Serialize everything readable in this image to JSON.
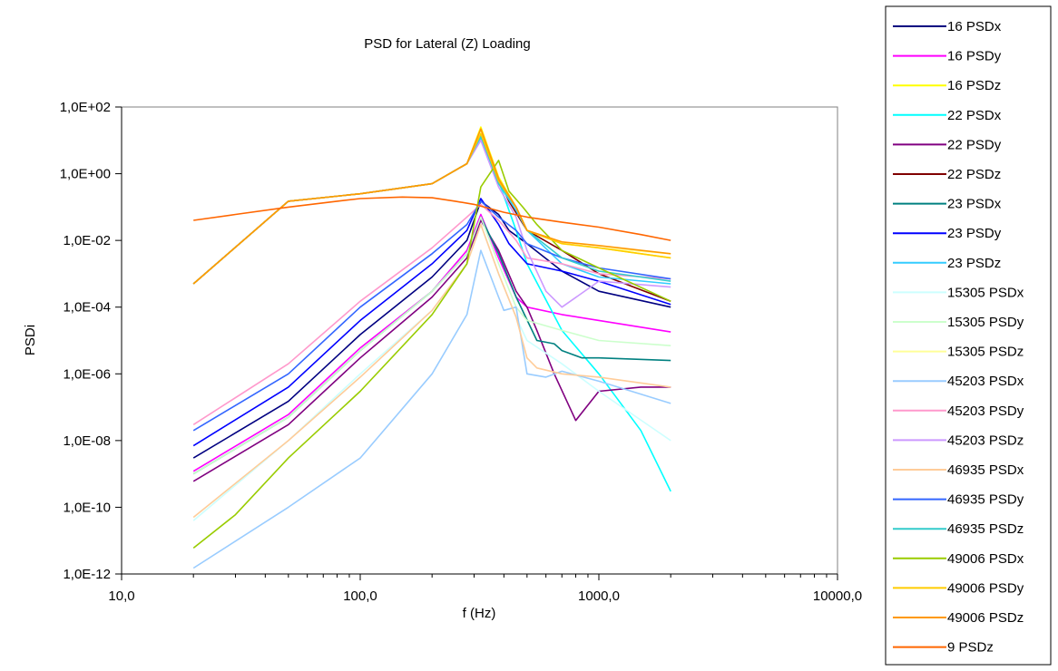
{
  "chart_data": {
    "type": "line",
    "title": "PSD for Lateral (Z) Loading",
    "xlabel": "f (Hz)",
    "ylabel": "PSDi",
    "x_scale": "log",
    "y_scale": "log",
    "xlim": [
      10,
      10000
    ],
    "ylim": [
      1e-12,
      100
    ],
    "x_ticks": [
      {
        "value": 10,
        "label": "10,0"
      },
      {
        "value": 100,
        "label": "100,0"
      },
      {
        "value": 1000,
        "label": "1000,0"
      },
      {
        "value": 10000,
        "label": "10000,0"
      }
    ],
    "y_ticks": [
      {
        "value": 100,
        "label": "1,0E+02"
      },
      {
        "value": 1,
        "label": "1,0E+00"
      },
      {
        "value": 0.01,
        "label": "1,0E-02"
      },
      {
        "value": 0.0001,
        "label": "1,0E-04"
      },
      {
        "value": 1e-06,
        "label": "1,0E-06"
      },
      {
        "value": 1e-08,
        "label": "1,0E-08"
      },
      {
        "value": 1e-10,
        "label": "1,0E-10"
      },
      {
        "value": 1e-12,
        "label": "1,0E-12"
      }
    ],
    "grid": false,
    "legend_position": "right",
    "series": [
      {
        "name": "16 PSDx",
        "color": "#000080",
        "x": [
          20,
          50,
          100,
          200,
          280,
          320,
          380,
          420,
          500,
          700,
          1000,
          2000
        ],
        "y": [
          3e-09,
          1.5e-07,
          1.5e-05,
          0.0008,
          0.01,
          0.15,
          0.06,
          0.02,
          0.008,
          0.0012,
          0.0003,
          0.0001
        ]
      },
      {
        "name": "16 PSDy",
        "color": "#ff00ff",
        "x": [
          20,
          50,
          100,
          200,
          280,
          320,
          380,
          450,
          500,
          700,
          1000,
          2000
        ],
        "y": [
          1.2e-09,
          6e-08,
          6e-06,
          0.0003,
          0.005,
          0.06,
          0.003,
          0.0002,
          0.0001,
          6e-05,
          4e-05,
          1.8e-05
        ]
      },
      {
        "name": "16 PSDz",
        "color": "#ffff00",
        "x": [
          20,
          50,
          100,
          200,
          280,
          320,
          380,
          450,
          500,
          700,
          1000,
          2000
        ],
        "y": [
          0.0005,
          0.15,
          0.25,
          0.5,
          2,
          25,
          0.8,
          0.1,
          0.02,
          0.008,
          0.006,
          0.003
        ]
      },
      {
        "name": "22 PSDx",
        "color": "#00ffff",
        "x": [
          20,
          50,
          100,
          200,
          280,
          320,
          380,
          450,
          500,
          700,
          1000,
          1500,
          2000
        ],
        "y": [
          0.0005,
          0.15,
          0.25,
          0.5,
          2,
          15,
          0.6,
          0.02,
          0.002,
          2e-05,
          1e-06,
          2e-08,
          3e-10
        ]
      },
      {
        "name": "22 PSDy",
        "color": "#800080",
        "x": [
          20,
          50,
          100,
          200,
          280,
          320,
          380,
          450,
          500,
          550,
          650,
          800,
          1000,
          1500,
          2000
        ],
        "y": [
          6e-10,
          3e-08,
          3e-06,
          0.0002,
          0.003,
          0.04,
          0.005,
          0.0003,
          0.0001,
          2e-05,
          1e-06,
          4e-08,
          3e-07,
          4e-07,
          4e-07
        ]
      },
      {
        "name": "22 PSDz",
        "color": "#800000",
        "x": [
          20,
          50,
          100,
          200,
          280,
          320,
          380,
          420,
          500,
          700,
          1000,
          2000
        ],
        "y": [
          0.0005,
          0.15,
          0.25,
          0.5,
          2,
          20,
          0.7,
          0.15,
          0.02,
          0.005,
          0.001,
          0.00015
        ]
      },
      {
        "name": "23 PSDx",
        "color": "#008080",
        "x": [
          20,
          50,
          100,
          200,
          280,
          320,
          380,
          450,
          550,
          650,
          700,
          850,
          1000,
          2000
        ],
        "y": [
          1e-09,
          5e-08,
          5e-06,
          0.0003,
          0.004,
          0.05,
          0.004,
          0.0002,
          1e-05,
          8e-06,
          5e-06,
          3e-06,
          3e-06,
          2.5e-06
        ]
      },
      {
        "name": "23 PSDy",
        "color": "#0000ff",
        "x": [
          20,
          50,
          100,
          200,
          280,
          320,
          380,
          420,
          500,
          700,
          1000,
          2000
        ],
        "y": [
          7e-09,
          4e-07,
          4e-05,
          0.002,
          0.02,
          0.18,
          0.03,
          0.008,
          0.002,
          0.0012,
          0.0006,
          0.00012
        ]
      },
      {
        "name": "23 PSDz",
        "color": "#33ccff",
        "x": [
          20,
          50,
          100,
          200,
          280,
          320,
          380,
          450,
          500,
          700,
          1000,
          2000
        ],
        "y": [
          0.0005,
          0.15,
          0.25,
          0.5,
          2,
          12,
          0.5,
          0.08,
          0.02,
          0.002,
          0.0008,
          0.0005
        ]
      },
      {
        "name": "15305 PSDx",
        "color": "#ccffff",
        "x": [
          20,
          50,
          100,
          200,
          280,
          320,
          380,
          450,
          500,
          700,
          1000,
          2000
        ],
        "y": [
          4e-11,
          1e-08,
          1e-06,
          8e-05,
          0.002,
          0.03,
          0.001,
          5e-05,
          1e-05,
          2e-06,
          3e-07,
          1e-08
        ]
      },
      {
        "name": "15305 PSDy",
        "color": "#ccffcc",
        "x": [
          20,
          50,
          100,
          200,
          280,
          320,
          380,
          450,
          500,
          700,
          1000,
          2000
        ],
        "y": [
          1e-09,
          5e-08,
          5e-06,
          0.0003,
          0.004,
          0.05,
          0.002,
          0.0001,
          4e-05,
          2e-05,
          1e-05,
          7e-06
        ]
      },
      {
        "name": "15305 PSDz",
        "color": "#ffff99",
        "x": [
          20,
          50,
          100,
          200,
          280,
          320,
          380,
          450,
          500,
          700,
          1000,
          2000
        ],
        "y": [
          0.0005,
          0.15,
          0.25,
          0.5,
          2,
          18,
          0.7,
          0.1,
          0.02,
          0.008,
          0.006,
          0.004
        ]
      },
      {
        "name": "45203 PSDx",
        "color": "#99ccff",
        "x": [
          20,
          50,
          100,
          200,
          280,
          320,
          380,
          400,
          450,
          500,
          600,
          700,
          1000,
          2000
        ],
        "y": [
          1.5e-12,
          1e-10,
          3e-09,
          1e-06,
          6e-05,
          0.005,
          0.0002,
          8e-05,
          0.0001,
          1e-06,
          8e-07,
          1.2e-06,
          6e-07,
          1.3e-07
        ]
      },
      {
        "name": "45203 PSDy",
        "color": "#ff99cc",
        "x": [
          20,
          50,
          100,
          200,
          280,
          320,
          380,
          450,
          500,
          700,
          1000,
          2000
        ],
        "y": [
          3e-08,
          2e-06,
          0.00015,
          0.006,
          0.05,
          0.12,
          0.04,
          0.01,
          0.003,
          0.002,
          0.001,
          0.0007
        ]
      },
      {
        "name": "45203 PSDz",
        "color": "#cc99ff",
        "x": [
          20,
          50,
          100,
          200,
          280,
          320,
          380,
          450,
          500,
          600,
          700,
          1000,
          2000
        ],
        "y": [
          0.0005,
          0.15,
          0.25,
          0.5,
          2,
          10,
          0.4,
          0.05,
          0.005,
          0.0003,
          0.0001,
          0.0006,
          0.0004
        ]
      },
      {
        "name": "46935 PSDx",
        "color": "#ffcc99",
        "x": [
          20,
          50,
          100,
          200,
          280,
          320,
          380,
          450,
          500,
          550,
          700,
          1000,
          2000
        ],
        "y": [
          5e-11,
          1e-08,
          8e-07,
          8e-05,
          0.002,
          0.03,
          0.001,
          5e-05,
          3e-06,
          1.5e-06,
          1e-06,
          8e-07,
          4e-07
        ]
      },
      {
        "name": "46935 PSDy",
        "color": "#3366ff",
        "x": [
          20,
          50,
          100,
          200,
          280,
          320,
          380,
          450,
          500,
          700,
          1000,
          2000
        ],
        "y": [
          2e-08,
          1e-06,
          0.0001,
          0.004,
          0.03,
          0.15,
          0.05,
          0.02,
          0.008,
          0.003,
          0.0015,
          0.0007
        ]
      },
      {
        "name": "46935 PSDz",
        "color": "#33cccc",
        "x": [
          20,
          50,
          100,
          200,
          280,
          320,
          380,
          450,
          500,
          700,
          1000,
          2000
        ],
        "y": [
          0.0005,
          0.15,
          0.25,
          0.5,
          2,
          14,
          0.5,
          0.1,
          0.02,
          0.003,
          0.0012,
          0.0006
        ]
      },
      {
        "name": "49006 PSDx",
        "color": "#99cc00",
        "x": [
          20,
          30,
          50,
          100,
          200,
          280,
          320,
          380,
          420,
          480,
          550,
          700,
          1000,
          2000
        ],
        "y": [
          6e-12,
          6e-11,
          3e-09,
          3e-07,
          6e-05,
          0.002,
          0.4,
          2.5,
          0.3,
          0.1,
          0.03,
          0.005,
          0.0015,
          0.00015
        ]
      },
      {
        "name": "49006 PSDy",
        "color": "#ffcc00",
        "x": [
          20,
          50,
          100,
          200,
          280,
          320,
          380,
          450,
          500,
          700,
          1000,
          2000
        ],
        "y": [
          0.0005,
          0.15,
          0.25,
          0.5,
          2,
          16,
          0.6,
          0.1,
          0.02,
          0.008,
          0.006,
          0.003
        ]
      },
      {
        "name": "49006 PSDz",
        "color": "#ff9900",
        "x": [
          20,
          50,
          100,
          200,
          280,
          320,
          380,
          450,
          500,
          700,
          1000,
          2000
        ],
        "y": [
          0.0005,
          0.15,
          0.25,
          0.5,
          2,
          22,
          0.7,
          0.1,
          0.02,
          0.009,
          0.007,
          0.004
        ]
      },
      {
        "name": "9 PSDz",
        "color": "#ff6600",
        "x": [
          20,
          30,
          50,
          80,
          100,
          150,
          200,
          250,
          300,
          350,
          400,
          500,
          700,
          1000,
          1500,
          2000
        ],
        "y": [
          0.04,
          0.06,
          0.1,
          0.15,
          0.18,
          0.2,
          0.19,
          0.15,
          0.12,
          0.09,
          0.07,
          0.05,
          0.035,
          0.025,
          0.015,
          0.01
        ]
      }
    ]
  }
}
